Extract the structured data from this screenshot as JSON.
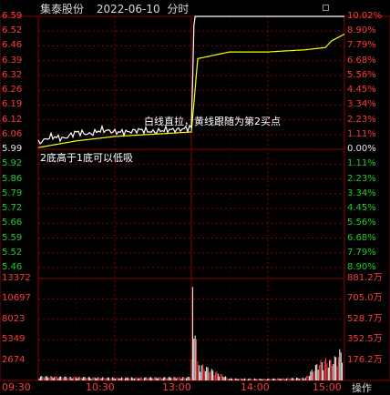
{
  "header": {
    "stock_name": "集泰股份",
    "date": "2022-06-10",
    "mode": "分时"
  },
  "price_axis": [
    {
      "price": "6.59",
      "pct": "10.02%",
      "tone": "up"
    },
    {
      "price": "6.52",
      "pct": "8.90%",
      "tone": "up"
    },
    {
      "price": "6.46",
      "pct": "7.79%",
      "tone": "up"
    },
    {
      "price": "6.39",
      "pct": "6.68%",
      "tone": "up"
    },
    {
      "price": "6.32",
      "pct": "5.56%",
      "tone": "up"
    },
    {
      "price": "6.26",
      "pct": "4.45%",
      "tone": "up"
    },
    {
      "price": "6.19",
      "pct": "3.34%",
      "tone": "up"
    },
    {
      "price": "6.12",
      "pct": "2.23%",
      "tone": "up"
    },
    {
      "price": "6.06",
      "pct": "1.11%",
      "tone": "up"
    },
    {
      "price": "5.99",
      "pct": "0.00%",
      "tone": "flat"
    },
    {
      "price": "5.92",
      "pct": "1.11%",
      "tone": "down"
    },
    {
      "price": "5.86",
      "pct": "2.23%",
      "tone": "down"
    },
    {
      "price": "5.79",
      "pct": "3.34%",
      "tone": "down"
    },
    {
      "price": "5.72",
      "pct": "4.45%",
      "tone": "down"
    },
    {
      "price": "5.66",
      "pct": "5.56%",
      "tone": "down"
    },
    {
      "price": "5.59",
      "pct": "6.68%",
      "tone": "down"
    },
    {
      "price": "5.52",
      "pct": "7.79%",
      "tone": "down"
    },
    {
      "price": "5.46",
      "pct": "8.90%",
      "tone": "down"
    }
  ],
  "volume_axis": {
    "left": [
      "13372",
      "10697",
      "8023",
      "5349",
      "2674"
    ],
    "right": [
      "881.2万",
      "705.0万",
      "528.7万",
      "352.5万",
      "176.2万"
    ]
  },
  "time_axis": [
    "09:30",
    "10:30",
    "13:00",
    "14:00",
    "15:00"
  ],
  "annotations": {
    "upper": "白线直拉，黄线跟随为第2买点",
    "lower": "2底高于1底可以低吸"
  },
  "operate_label": "操作",
  "colors": {
    "background": "#000000",
    "grid": "#8b0000",
    "price_line": "#ffffff",
    "avg_line": "#ffff00",
    "up": "#ff3b3b",
    "down": "#22cc22"
  },
  "chart_data": {
    "type": "line",
    "title": "",
    "prev_close": 5.99,
    "ylim": [
      5.46,
      6.59
    ],
    "series": [
      {
        "x": [
          "09:30",
          "09:40",
          "09:50",
          "10:00",
          "10:10",
          "10:20",
          "10:30",
          "10:40",
          "10:50",
          "11:00",
          "11:10",
          "11:20",
          "11:30",
          "13:00",
          "13:01",
          "13:02",
          "13:03",
          "13:10",
          "13:30",
          "14:00",
          "14:30",
          "14:45",
          "14:50",
          "15:00"
        ],
        "values": [
          6.02,
          6.05,
          6.04,
          6.07,
          6.06,
          6.08,
          6.07,
          6.07,
          6.08,
          6.07,
          6.08,
          6.08,
          6.09,
          6.1,
          6.3,
          6.55,
          6.59,
          6.59,
          6.59,
          6.59,
          6.59,
          6.59,
          6.59,
          6.59
        ]
      },
      {
        "x": [
          "09:30",
          "10:00",
          "10:30",
          "11:00",
          "11:30",
          "13:00",
          "13:02",
          "13:05",
          "13:30",
          "14:00",
          "14:30",
          "14:45",
          "14:50",
          "15:00"
        ],
        "values": [
          6.0,
          6.03,
          6.05,
          6.06,
          6.07,
          6.07,
          6.2,
          6.4,
          6.43,
          6.43,
          6.44,
          6.45,
          6.48,
          6.51
        ]
      }
    ],
    "volume": {
      "x": [
        "09:30",
        "10:00",
        "10:30",
        "11:00",
        "11:30",
        "13:00",
        "13:01",
        "13:02",
        "13:03",
        "13:05",
        "13:30",
        "14:00",
        "14:30",
        "14:40",
        "14:45",
        "14:50",
        "14:55",
        "15:00"
      ],
      "values": [
        600,
        500,
        400,
        450,
        500,
        4000,
        12500,
        6000,
        11000,
        2500,
        300,
        250,
        400,
        2500,
        3000,
        2800,
        3500,
        5000
      ]
    }
  }
}
